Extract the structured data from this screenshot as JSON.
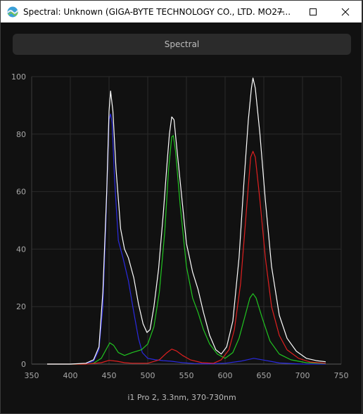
{
  "window": {
    "title": "Spectral: Unknown (GIGA-BYTE TECHNOLOGY CO., LTD. MO27...",
    "icon": "spectral-app-icon",
    "controls": [
      "minimize-icon",
      "maximize-icon",
      "close-icon"
    ]
  },
  "tab": {
    "label": "Spectral"
  },
  "caption": "i1 Pro 2, 3.3nm, 370-730nm",
  "chart_data": {
    "type": "line",
    "title": "",
    "xlabel": "",
    "ylabel": "",
    "xlim": [
      350,
      750
    ],
    "ylim": [
      0,
      100
    ],
    "xticks": [
      350,
      400,
      450,
      500,
      550,
      600,
      650,
      700,
      750
    ],
    "yticks": [
      0,
      20,
      40,
      60,
      80,
      100
    ],
    "grid": true,
    "background": "#111111",
    "series": [
      {
        "color": "#2a2ae0",
        "points": [
          [
            370,
            0
          ],
          [
            400,
            0
          ],
          [
            420,
            0.2
          ],
          [
            430,
            1
          ],
          [
            437,
            5
          ],
          [
            442,
            20
          ],
          [
            446,
            50
          ],
          [
            450,
            85
          ],
          [
            452,
            87
          ],
          [
            454,
            84
          ],
          [
            457,
            65
          ],
          [
            462,
            43
          ],
          [
            468,
            37
          ],
          [
            475,
            29
          ],
          [
            482,
            18
          ],
          [
            488,
            9
          ],
          [
            493,
            4
          ],
          [
            500,
            2
          ],
          [
            510,
            1.5
          ],
          [
            520,
            1.2
          ],
          [
            530,
            1
          ],
          [
            545,
            0.5
          ],
          [
            560,
            0.2
          ],
          [
            580,
            0.1
          ],
          [
            600,
            0.3
          ],
          [
            620,
            1
          ],
          [
            637,
            2
          ],
          [
            650,
            1.4
          ],
          [
            670,
            0.4
          ],
          [
            700,
            0
          ],
          [
            730,
            0
          ]
        ]
      },
      {
        "color": "#21c521",
        "points": [
          [
            370,
            0
          ],
          [
            420,
            0
          ],
          [
            430,
            0.3
          ],
          [
            440,
            2
          ],
          [
            446,
            5
          ],
          [
            451,
            7.4
          ],
          [
            456,
            6.5
          ],
          [
            462,
            4
          ],
          [
            470,
            3
          ],
          [
            480,
            4
          ],
          [
            492,
            5
          ],
          [
            500,
            7
          ],
          [
            508,
            13
          ],
          [
            515,
            25
          ],
          [
            522,
            46
          ],
          [
            527,
            68
          ],
          [
            531,
            79
          ],
          [
            533,
            79.5
          ],
          [
            536,
            74
          ],
          [
            542,
            55
          ],
          [
            550,
            34
          ],
          [
            558,
            23
          ],
          [
            565,
            18
          ],
          [
            572,
            12
          ],
          [
            580,
            7
          ],
          [
            590,
            3.5
          ],
          [
            600,
            2
          ],
          [
            610,
            4
          ],
          [
            618,
            9
          ],
          [
            626,
            17
          ],
          [
            632,
            23
          ],
          [
            636,
            24.5
          ],
          [
            640,
            23
          ],
          [
            648,
            16
          ],
          [
            658,
            8
          ],
          [
            670,
            3.5
          ],
          [
            685,
            1.5
          ],
          [
            705,
            0.5
          ],
          [
            730,
            0.2
          ]
        ]
      },
      {
        "color": "#e02020",
        "points": [
          [
            370,
            0
          ],
          [
            420,
            0
          ],
          [
            440,
            0.5
          ],
          [
            450,
            1.3
          ],
          [
            460,
            1
          ],
          [
            470,
            0.5
          ],
          [
            480,
            0.3
          ],
          [
            500,
            0.3
          ],
          [
            515,
            1.5
          ],
          [
            525,
            4
          ],
          [
            531,
            5.2
          ],
          [
            537,
            4.6
          ],
          [
            545,
            3
          ],
          [
            555,
            1.5
          ],
          [
            570,
            0.5
          ],
          [
            585,
            0.3
          ],
          [
            595,
            1.5
          ],
          [
            605,
            5
          ],
          [
            612,
            12
          ],
          [
            620,
            28
          ],
          [
            628,
            55
          ],
          [
            633,
            72
          ],
          [
            636,
            74
          ],
          [
            639,
            72
          ],
          [
            645,
            57
          ],
          [
            652,
            37
          ],
          [
            660,
            20
          ],
          [
            670,
            10
          ],
          [
            680,
            5
          ],
          [
            695,
            2
          ],
          [
            710,
            0.7
          ],
          [
            730,
            0.3
          ]
        ]
      },
      {
        "color": "#ffffff",
        "points": [
          [
            370,
            0
          ],
          [
            400,
            0
          ],
          [
            420,
            0.3
          ],
          [
            430,
            1.5
          ],
          [
            437,
            6
          ],
          [
            442,
            25
          ],
          [
            447,
            60
          ],
          [
            450,
            88
          ],
          [
            452,
            95
          ],
          [
            455,
            88
          ],
          [
            459,
            68
          ],
          [
            465,
            47
          ],
          [
            470,
            40
          ],
          [
            475,
            37
          ],
          [
            482,
            30
          ],
          [
            488,
            21
          ],
          [
            494,
            14
          ],
          [
            499,
            11
          ],
          [
            503,
            12
          ],
          [
            508,
            20
          ],
          [
            514,
            33
          ],
          [
            520,
            52
          ],
          [
            525,
            70
          ],
          [
            528,
            80
          ],
          [
            531,
            86
          ],
          [
            534,
            85
          ],
          [
            538,
            74
          ],
          [
            544,
            58
          ],
          [
            550,
            42
          ],
          [
            558,
            32
          ],
          [
            565,
            26
          ],
          [
            572,
            18
          ],
          [
            580,
            10
          ],
          [
            588,
            5
          ],
          [
            595,
            3.5
          ],
          [
            602,
            6
          ],
          [
            610,
            15
          ],
          [
            618,
            37
          ],
          [
            624,
            62
          ],
          [
            630,
            85
          ],
          [
            634,
            96
          ],
          [
            636,
            99.5
          ],
          [
            639,
            96
          ],
          [
            645,
            80
          ],
          [
            652,
            57
          ],
          [
            660,
            34
          ],
          [
            670,
            17
          ],
          [
            680,
            9
          ],
          [
            692,
            4.5
          ],
          [
            705,
            2
          ],
          [
            718,
            1.2
          ],
          [
            730,
            0.8
          ]
        ]
      }
    ]
  }
}
